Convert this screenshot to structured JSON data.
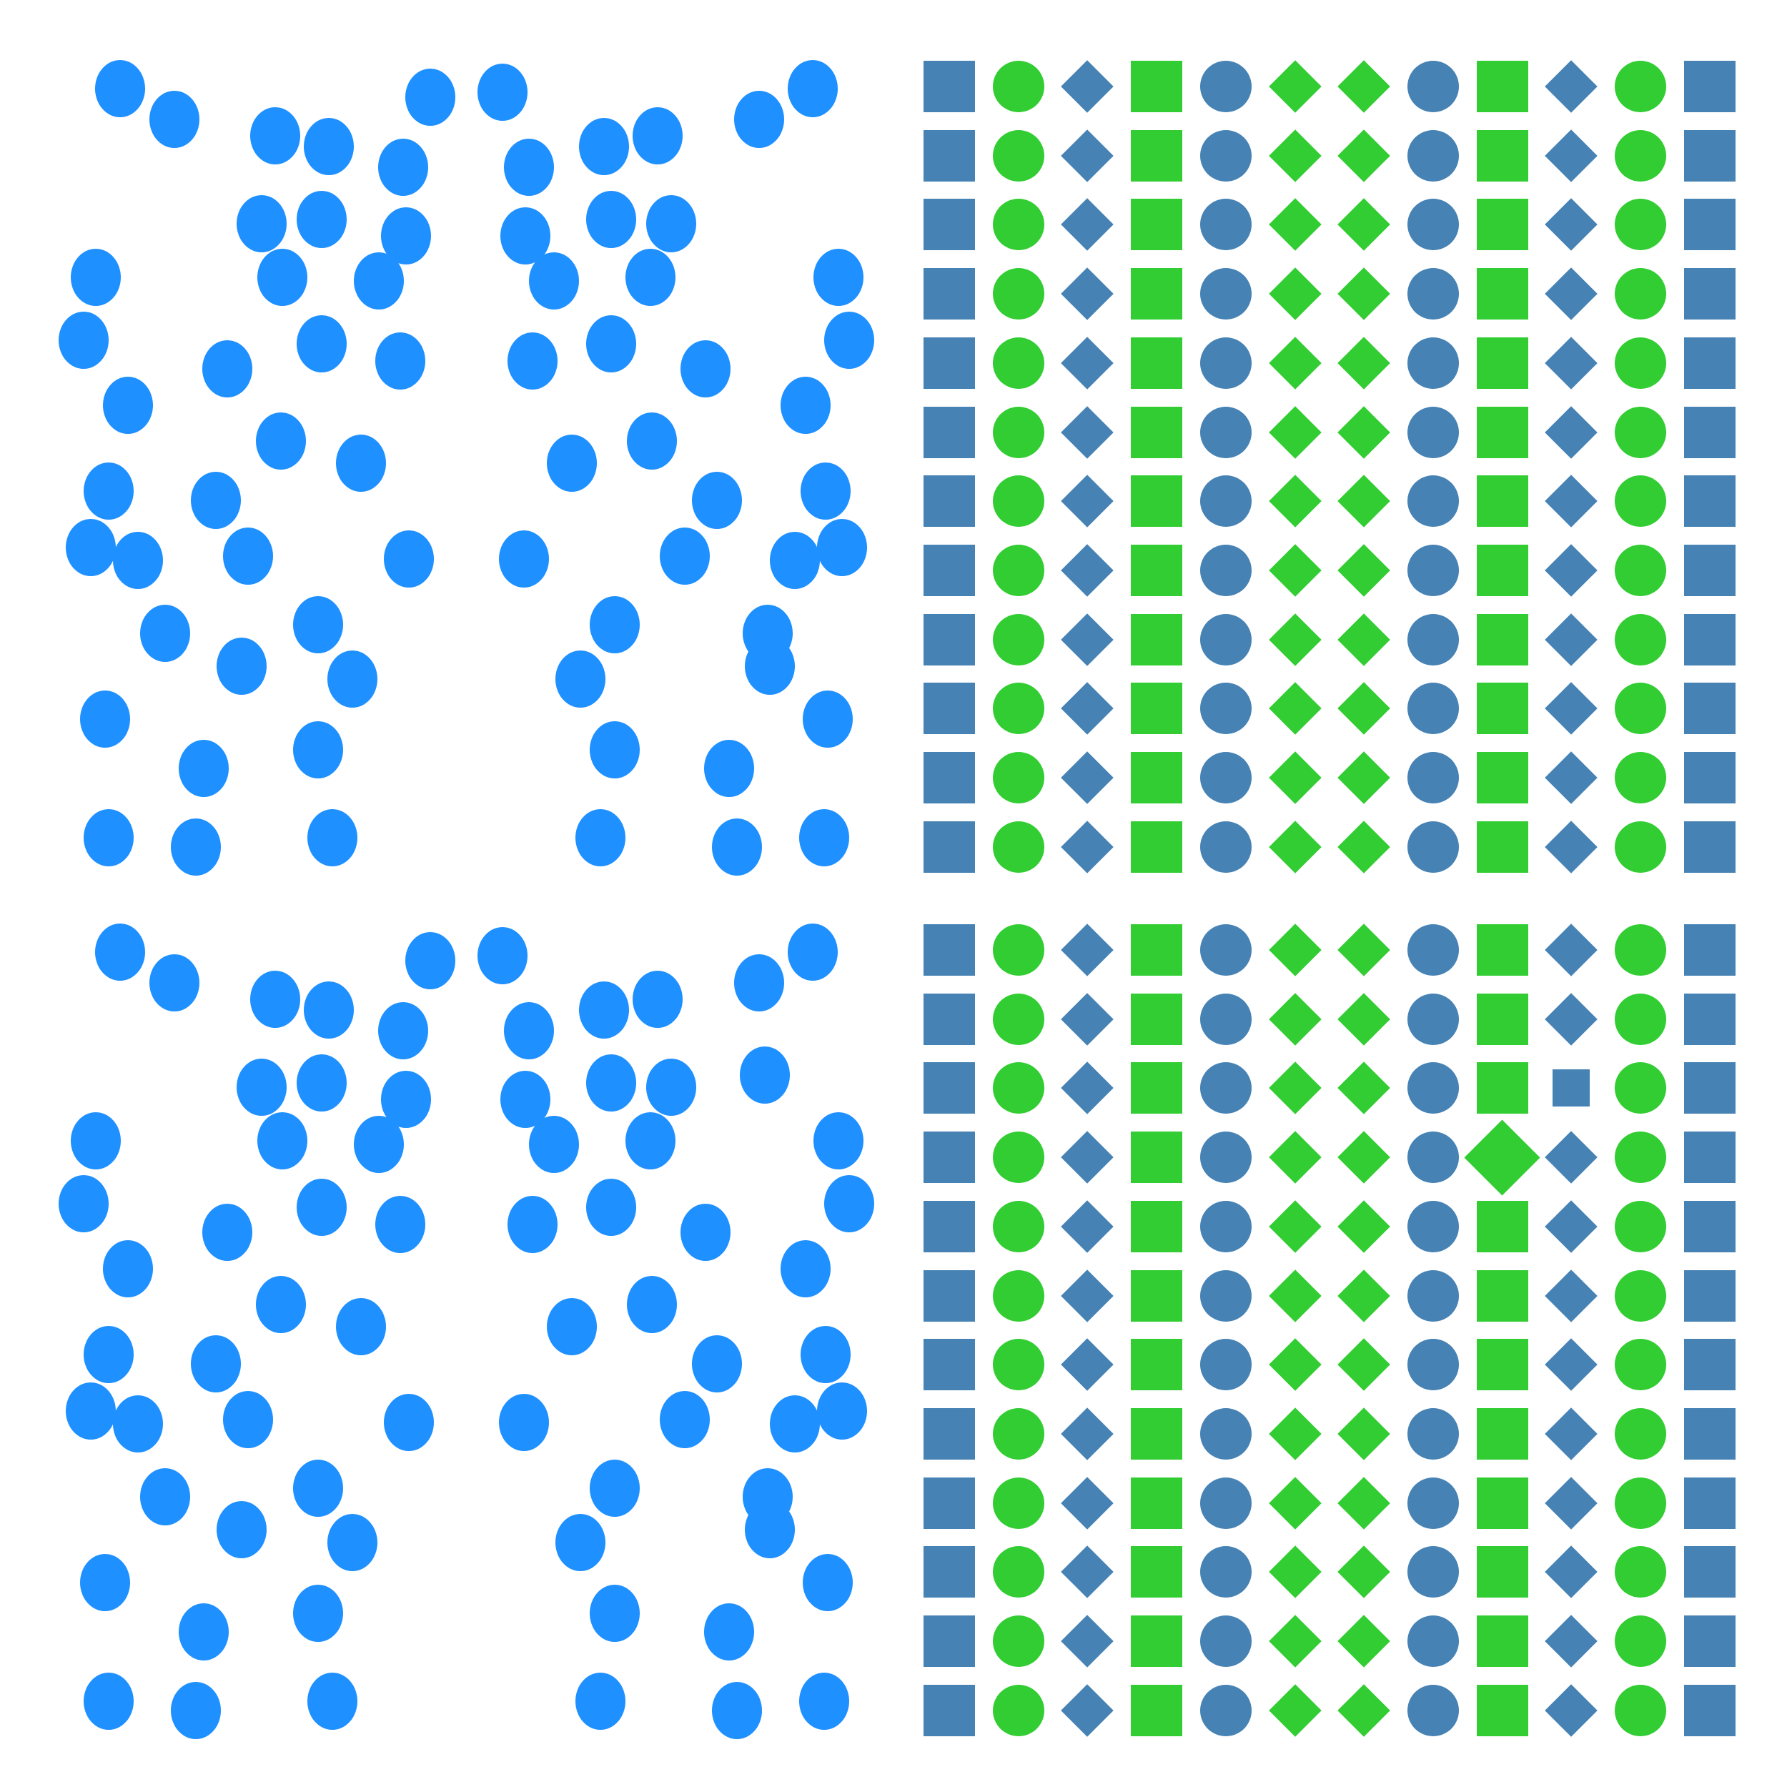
{
  "colors": {
    "background": "#ffffff",
    "dot_blue": "#1e90ff",
    "steel_blue": "#4682b4",
    "lime_green": "#32cd32"
  },
  "puzzle": {
    "type": "spot-the-difference",
    "panels": [
      "dots-top-left",
      "grid-top-right",
      "dots-bottom-left",
      "grid-bottom-right"
    ],
    "grid_rows": 12,
    "grid_columns": 12,
    "grid_column_pattern": [
      {
        "shape": "square",
        "color": "steel-blue"
      },
      {
        "shape": "circle",
        "color": "lime-green"
      },
      {
        "shape": "diamond",
        "color": "steel-blue"
      },
      {
        "shape": "square",
        "color": "lime-green"
      },
      {
        "shape": "circle",
        "color": "steel-blue"
      },
      {
        "shape": "diamond",
        "color": "lime-green"
      },
      {
        "shape": "diamond",
        "color": "lime-green"
      },
      {
        "shape": "circle",
        "color": "steel-blue"
      },
      {
        "shape": "square",
        "color": "lime-green"
      },
      {
        "shape": "diamond",
        "color": "steel-blue"
      },
      {
        "shape": "circle",
        "color": "lime-green"
      },
      {
        "shape": "square",
        "color": "steel-blue"
      }
    ],
    "grid_differences": [
      {
        "row": 3,
        "column": 10,
        "shape": "square",
        "color": "steel-blue",
        "size": "small"
      },
      {
        "row": 4,
        "column": 9,
        "shape": "diamond",
        "color": "lime-green",
        "size": "large"
      }
    ],
    "dot_count_top": 65,
    "dot_count_bottom": 66
  }
}
